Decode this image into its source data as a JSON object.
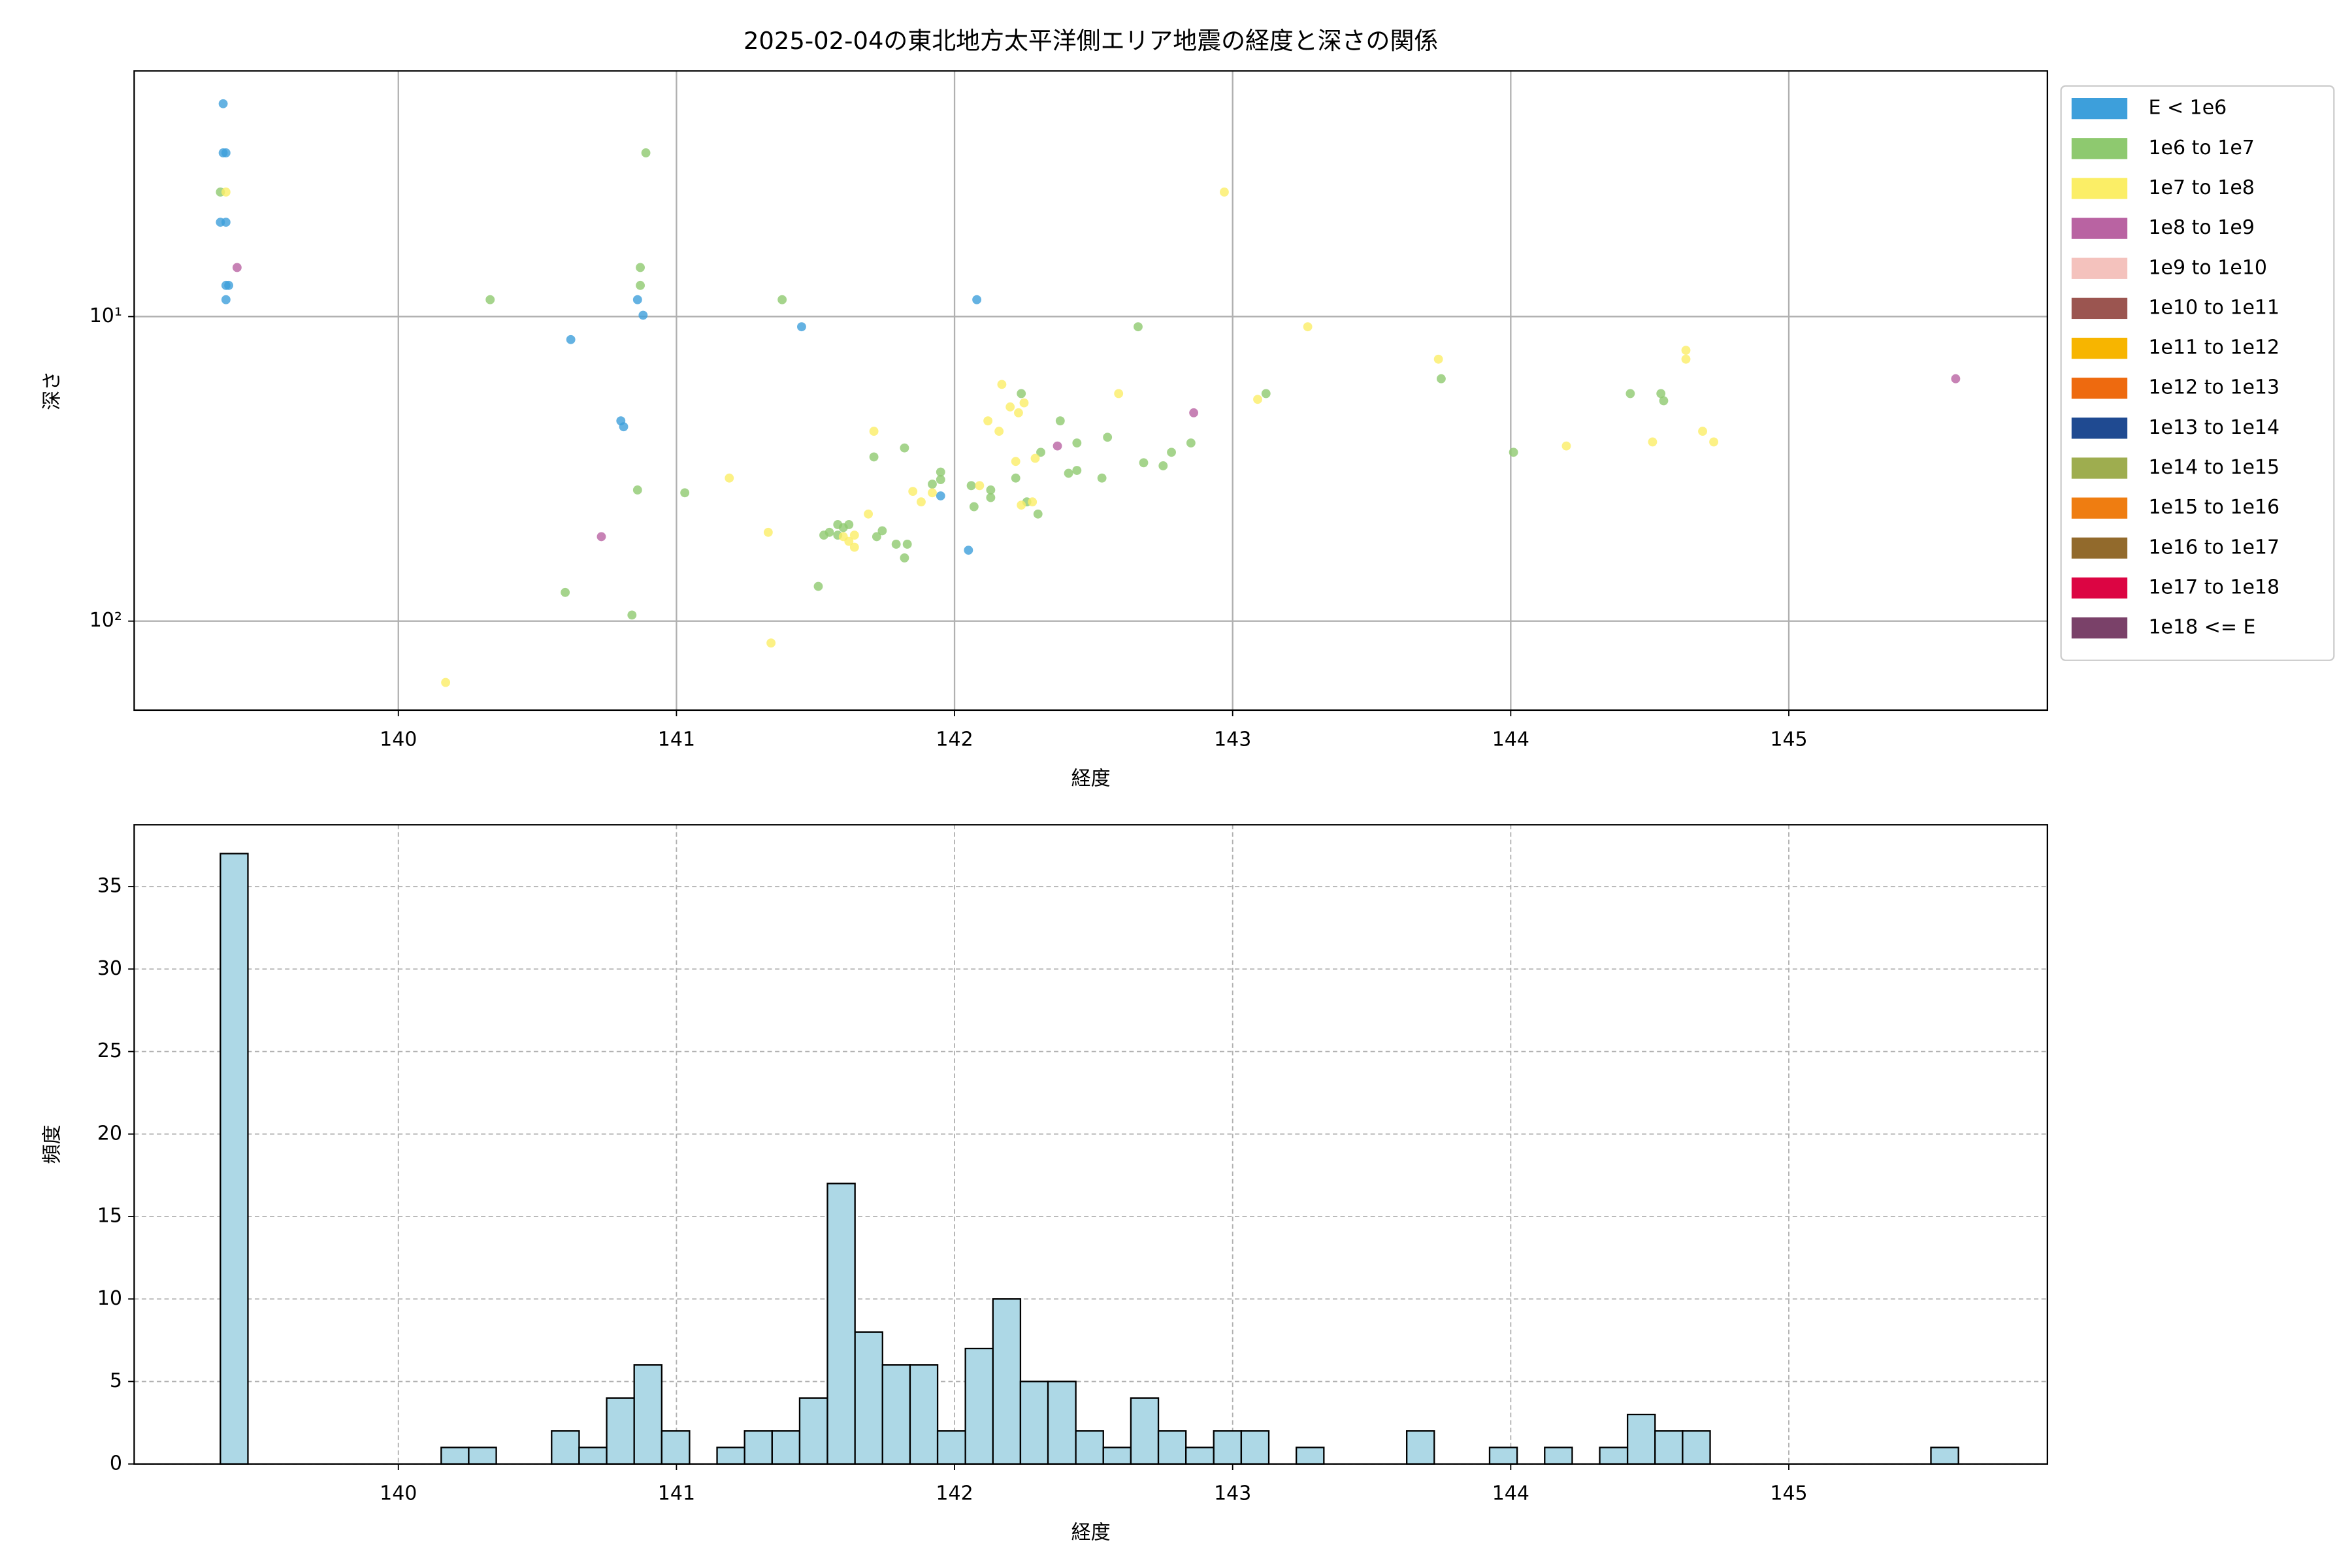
{
  "chart_data": [
    {
      "type": "scatter",
      "title": "2025-02-04の東北地方太平洋側エリア地震の経度と深さの関係",
      "xlabel": "経度",
      "ylabel": "深さ",
      "xlim": [
        139.05,
        145.93
      ],
      "xticks": [
        140,
        141,
        142,
        143,
        144,
        145
      ],
      "ylim": [
        1.56,
        196
      ],
      "yscale": "log",
      "y_inverted": true,
      "yticks": [
        {
          "value": 10,
          "label": "10¹"
        },
        {
          "value": 100,
          "label": "10²"
        }
      ],
      "grid": true,
      "legend": "outside upper right",
      "series": [
        {
          "name": "E < 1e6",
          "color": "#3d9fdb",
          "x": [
            139.37,
            139.37,
            139.38,
            139.36,
            139.38,
            139.38,
            139.39,
            139.38,
            140.62,
            140.8,
            140.81,
            140.86,
            140.88,
            141.45,
            142.08,
            141.95,
            142.05
          ],
          "values": [
            2.0,
            2.9,
            2.9,
            4.9,
            4.9,
            7.9,
            7.9,
            8.8,
            11.9,
            22.0,
            23.0,
            8.8,
            9.9,
            10.8,
            8.8,
            38.8,
            58.5
          ]
        },
        {
          "name": "1e6 to 1e7",
          "color": "#8ec96f",
          "x": [
            139.36,
            140.89,
            140.33,
            140.87,
            140.87,
            141.38,
            142.66,
            143.12,
            143.75,
            144.01,
            144.43,
            144.54,
            144.55,
            140.86,
            141.03,
            140.6,
            140.84,
            141.51,
            141.53,
            141.55,
            141.58,
            141.6,
            141.62,
            141.58,
            141.71,
            141.82,
            141.72,
            141.74,
            141.79,
            141.83,
            141.82,
            141.92,
            141.95,
            141.95,
            142.06,
            142.13,
            142.13,
            142.07,
            142.22,
            142.26,
            142.3,
            142.31,
            142.24,
            142.38,
            142.41,
            142.44,
            142.44,
            142.53,
            142.55,
            142.68,
            142.75,
            142.78,
            142.85
          ],
          "values": [
            3.9,
            2.9,
            8.8,
            6.9,
            7.9,
            8.8,
            10.8,
            17.9,
            16.0,
            27.9,
            17.9,
            17.9,
            18.9,
            37.1,
            37.9,
            80.5,
            95.5,
            76.9,
            52.2,
            51.1,
            48.2,
            49.3,
            48.2,
            52.2,
            28.9,
            27.0,
            52.8,
            50.5,
            55.9,
            55.9,
            62.0,
            35.5,
            32.4,
            34.3,
            35.9,
            37.1,
            39.3,
            42.1,
            33.9,
            40.6,
            44.5,
            27.9,
            17.9,
            22.0,
            32.7,
            26.0,
            32.0,
            33.9,
            24.9,
            30.2,
            30.9,
            27.9,
            26.0
          ]
        },
        {
          "name": "1e7 to 1e8",
          "color": "#fbee66",
          "x": [
            139.38,
            141.71,
            141.19,
            141.33,
            141.34,
            140.17,
            142.97,
            143.27,
            143.74,
            144.2,
            144.51,
            144.63,
            144.63,
            144.69,
            144.73,
            143.09,
            142.59,
            142.17,
            142.12,
            142.16,
            142.2,
            142.23,
            142.25,
            141.69,
            141.62,
            141.64,
            141.6,
            141.64,
            141.85,
            141.88,
            142.22,
            142.29,
            142.28,
            142.24,
            141.92,
            142.09
          ],
          "values": [
            3.9,
            23.8,
            33.9,
            51.1,
            118,
            159,
            3.9,
            10.8,
            13.8,
            26.6,
            25.8,
            12.9,
            13.8,
            23.8,
            25.8,
            18.7,
            17.9,
            16.7,
            22.0,
            23.8,
            19.8,
            20.7,
            19.2,
            44.5,
            54.7,
            57.2,
            52.8,
            52.2,
            37.5,
            40.6,
            29.9,
            29.2,
            40.6,
            41.6,
            37.9,
            35.9
          ]
        },
        {
          "name": "1e8 to 1e9",
          "color": "#b963a2",
          "x": [
            139.42,
            140.73,
            142.37,
            142.86,
            145.6
          ],
          "values": [
            6.9,
            52.8,
            26.6,
            20.7,
            16.0
          ]
        },
        {
          "name": "1e9 to 1e10",
          "color": "#f4c2bd",
          "x": [],
          "values": []
        },
        {
          "name": "1e10 to 1e11",
          "color": "#9b5550",
          "x": [],
          "values": []
        },
        {
          "name": "1e11 to 1e12",
          "color": "#f7b500",
          "x": [],
          "values": []
        },
        {
          "name": "1e12 to 1e13",
          "color": "#ee6a0f",
          "x": [],
          "values": []
        },
        {
          "name": "1e13 to 1e14",
          "color": "#1f4a91",
          "x": [],
          "values": []
        },
        {
          "name": "1e14 to 1e15",
          "color": "#9ead4f",
          "x": [],
          "values": []
        },
        {
          "name": "1e15 to 1e16",
          "color": "#ef7d11",
          "x": [],
          "values": []
        },
        {
          "name": "1e16 to 1e17",
          "color": "#926a2c",
          "x": [],
          "values": []
        },
        {
          "name": "1e17 to 1e18",
          "color": "#dc0543",
          "x": [],
          "values": []
        },
        {
          "name": "1e18 <= E",
          "color": "#7a4169",
          "x": [],
          "values": []
        }
      ]
    },
    {
      "type": "histogram",
      "xlabel": "経度",
      "ylabel": "頻度",
      "color": "#add8e6",
      "xlim": [
        139.05,
        145.93
      ],
      "xticks": [
        140,
        141,
        142,
        143,
        144,
        145
      ],
      "ylim": [
        0,
        38.75
      ],
      "yticks": [
        0,
        5,
        10,
        15,
        20,
        25,
        30,
        35
      ],
      "grid": true,
      "grid_style": "dashed",
      "bins": [
        139.36,
        139.459,
        139.558,
        139.658,
        139.757,
        139.856,
        139.955,
        140.054,
        140.154,
        140.253,
        140.352,
        140.451,
        140.551,
        140.65,
        140.749,
        140.848,
        140.947,
        141.047,
        141.146,
        141.245,
        141.344,
        141.443,
        141.543,
        141.642,
        141.741,
        141.84,
        141.939,
        142.039,
        142.138,
        142.237,
        142.336,
        142.436,
        142.535,
        142.634,
        142.733,
        142.832,
        142.932,
        143.031,
        143.13,
        143.229,
        143.328,
        143.428,
        143.527,
        143.626,
        143.725,
        143.824,
        143.924,
        144.023,
        144.122,
        144.221,
        144.32,
        144.42,
        144.519,
        144.618,
        144.717,
        144.816,
        144.916,
        145.015,
        145.114,
        145.213,
        145.312,
        145.412,
        145.511,
        145.61
      ],
      "values": [
        37,
        0,
        0,
        0,
        0,
        0,
        0,
        0,
        1,
        1,
        0,
        0,
        2,
        1,
        4,
        6,
        2,
        0,
        1,
        2,
        2,
        4,
        17,
        8,
        6,
        6,
        2,
        7,
        10,
        5,
        5,
        2,
        1,
        4,
        2,
        1,
        2,
        2,
        0,
        1,
        0,
        0,
        0,
        2,
        0,
        0,
        1,
        0,
        1,
        0,
        1,
        3,
        2,
        2,
        0,
        0,
        0,
        0,
        0,
        0,
        0,
        0,
        1
      ]
    }
  ]
}
